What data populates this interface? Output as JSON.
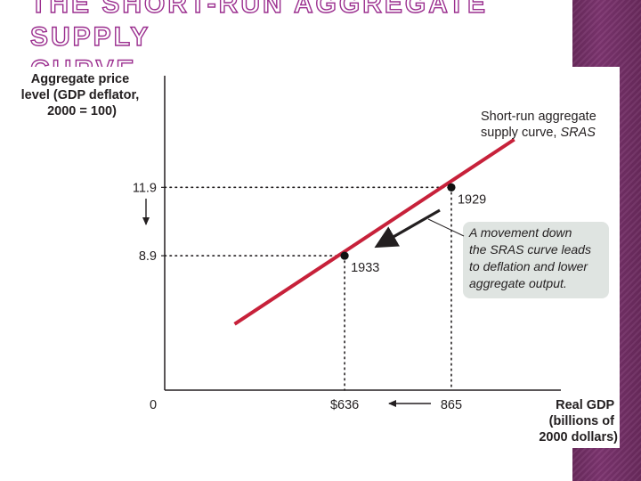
{
  "slide": {
    "title_line1": "The Short-Run Aggregate Supply",
    "title_line2": "Curve"
  },
  "colors": {
    "curve": "#c7213a",
    "axis": "#231f20",
    "annotation_bg": "#dfe4e1",
    "title_outline": "#9b2f8f",
    "side_band": "#6e2c62"
  },
  "chart_data": {
    "type": "line",
    "ylabel_lines": [
      "Aggregate price",
      "level (GDP deflator,",
      "2000 = 100)"
    ],
    "xlabel_lines": [
      "Real GDP",
      "(billions of",
      "2000 dollars)"
    ],
    "origin_label": "0",
    "curve_label_lines": [
      "Short-run aggregate",
      "supply curve, "
    ],
    "curve_label_italic": "SRAS",
    "x_ticks": [
      {
        "value": 636,
        "label": "$636"
      },
      {
        "value": 865,
        "label": "865"
      }
    ],
    "y_ticks": [
      {
        "value": 11.9,
        "label": "11.9"
      },
      {
        "value": 8.9,
        "label": "8.9"
      }
    ],
    "points": [
      {
        "x": 865,
        "y": 11.9,
        "label": "1929"
      },
      {
        "x": 636,
        "y": 8.9,
        "label": "1933"
      }
    ],
    "series": [
      {
        "values": [
          [
            400,
            5.9
          ],
          [
            1000,
            14.0
          ]
        ]
      }
    ],
    "xlim": [
      250,
      1100
    ],
    "ylim": [
      3.0,
      16.8
    ],
    "grid": false,
    "annotation_lines": [
      "A movement down",
      "the SRAS curve leads",
      "to deflation and lower",
      "aggregate output."
    ]
  }
}
